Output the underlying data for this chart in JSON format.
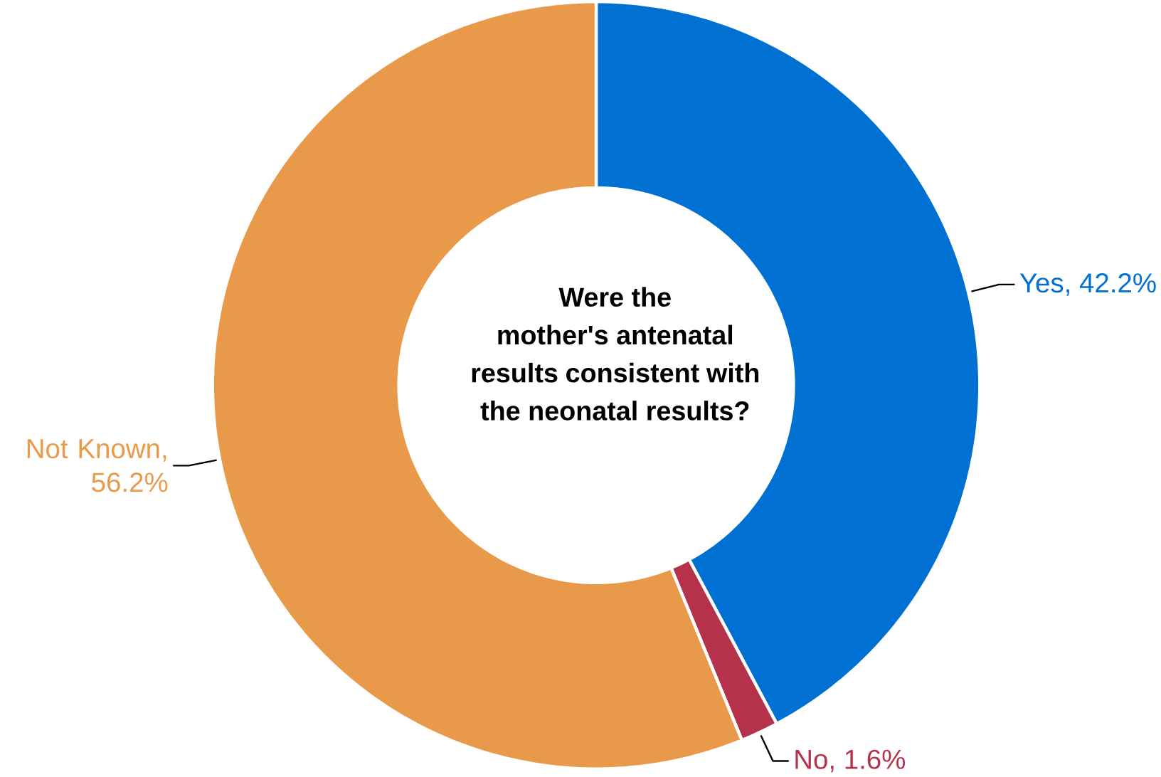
{
  "chart_data": {
    "type": "donut",
    "title": "Were the mother's antenatal results consistent with the neonatal results?",
    "categories": [
      "Yes",
      "No",
      "Not Known"
    ],
    "values": [
      42.2,
      1.6,
      56.2
    ],
    "colors": [
      "#0070d2",
      "#b5324a",
      "#e89a4a"
    ],
    "value_labels": [
      ", 42.2%",
      ", 1.6%",
      ", 56.2%"
    ]
  }
}
